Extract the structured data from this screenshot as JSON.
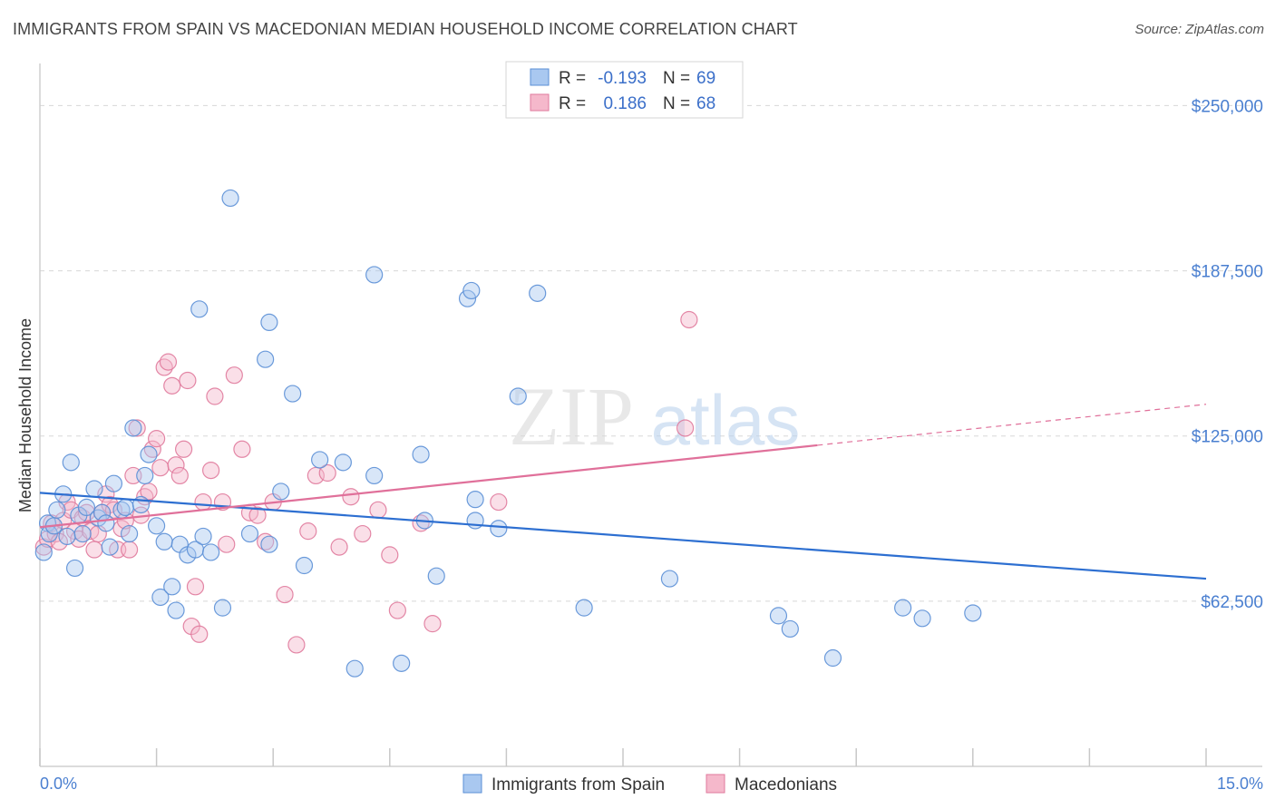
{
  "header": {
    "title": "IMMIGRANTS FROM SPAIN VS MACEDONIAN MEDIAN HOUSEHOLD INCOME CORRELATION CHART",
    "source": "Source: ZipAtlas.com"
  },
  "watermark": {
    "zip": "ZIP",
    "atlas": "atlas"
  },
  "legend": {
    "r_label": "R =",
    "n_label": "N =",
    "series1": {
      "r": "-0.193",
      "n": "69"
    },
    "series2": {
      "r": "0.186",
      "n": "68"
    }
  },
  "bottom_legend": {
    "series1": "Immigrants from Spain",
    "series2": "Macedonians"
  },
  "colors": {
    "blue_fill": "#a9c8f0",
    "blue_stroke": "#5b8fd6",
    "blue_line": "#2d6fd1",
    "pink_fill": "#f5b8cb",
    "pink_stroke": "#e07a9c",
    "pink_line": "#e0709a",
    "tick_text": "#4a7fd0"
  },
  "chart_data": {
    "type": "scatter",
    "title": "IMMIGRANTS FROM SPAIN VS MACEDONIAN MEDIAN HOUSEHOLD INCOME CORRELATION CHART",
    "xlabel": "",
    "ylabel": "Median Household Income",
    "xlim": [
      0,
      15
    ],
    "ylim": [
      0,
      262500
    ],
    "x_tick_labels": [
      "0.0%",
      "15.0%"
    ],
    "y_ticks": [
      62500,
      125000,
      187500,
      250000
    ],
    "y_tick_labels": [
      "$62,500",
      "$125,000",
      "$187,500",
      "$250,000"
    ],
    "series": [
      {
        "name": "Immigrants from Spain",
        "r": -0.193,
        "n": 69,
        "trend": {
          "x": [
            0,
            15
          ],
          "y": [
            103500,
            71000
          ],
          "dashed_from": null
        },
        "points": [
          [
            0.05,
            81000
          ],
          [
            0.1,
            92000
          ],
          [
            0.12,
            88000
          ],
          [
            0.18,
            91000
          ],
          [
            0.22,
            97000
          ],
          [
            0.3,
            103000
          ],
          [
            0.35,
            87000
          ],
          [
            0.4,
            115000
          ],
          [
            0.45,
            75000
          ],
          [
            0.5,
            95000
          ],
          [
            0.55,
            88000
          ],
          [
            0.6,
            98000
          ],
          [
            0.7,
            105000
          ],
          [
            0.75,
            94000
          ],
          [
            0.8,
            96000
          ],
          [
            0.85,
            92000
          ],
          [
            0.9,
            83000
          ],
          [
            0.95,
            107000
          ],
          [
            1.05,
            97000
          ],
          [
            1.1,
            98000
          ],
          [
            1.15,
            88000
          ],
          [
            1.2,
            128000
          ],
          [
            1.3,
            99000
          ],
          [
            1.35,
            110000
          ],
          [
            1.4,
            118000
          ],
          [
            1.5,
            91000
          ],
          [
            1.55,
            64000
          ],
          [
            1.6,
            85000
          ],
          [
            1.7,
            68000
          ],
          [
            1.75,
            59000
          ],
          [
            1.8,
            84000
          ],
          [
            1.9,
            80000
          ],
          [
            2.0,
            82000
          ],
          [
            2.05,
            173000
          ],
          [
            2.1,
            87000
          ],
          [
            2.2,
            81000
          ],
          [
            2.35,
            60000
          ],
          [
            2.45,
            215000
          ],
          [
            2.7,
            88000
          ],
          [
            2.95,
            168000
          ],
          [
            2.9,
            154000
          ],
          [
            2.95,
            84000
          ],
          [
            3.1,
            104000
          ],
          [
            3.25,
            141000
          ],
          [
            3.4,
            76000
          ],
          [
            3.6,
            116000
          ],
          [
            3.9,
            115000
          ],
          [
            4.05,
            37000
          ],
          [
            4.3,
            110000
          ],
          [
            4.3,
            186000
          ],
          [
            4.65,
            39000
          ],
          [
            4.9,
            118000
          ],
          [
            4.95,
            93000
          ],
          [
            5.1,
            72000
          ],
          [
            5.5,
            177000
          ],
          [
            5.55,
            180000
          ],
          [
            5.6,
            101000
          ],
          [
            5.6,
            93000
          ],
          [
            5.9,
            90000
          ],
          [
            6.15,
            140000
          ],
          [
            6.4,
            179000
          ],
          [
            7.0,
            60000
          ],
          [
            8.1,
            71000
          ],
          [
            9.5,
            57000
          ],
          [
            9.65,
            52000
          ],
          [
            10.2,
            41000
          ],
          [
            11.1,
            60000
          ],
          [
            11.35,
            56000
          ],
          [
            12.0,
            58000
          ]
        ]
      },
      {
        "name": "Macedonians",
        "r": 0.186,
        "n": 68,
        "trend": {
          "x": [
            0,
            15
          ],
          "y": [
            90500,
            137000
          ],
          "dashed_from": 10.0
        },
        "points": [
          [
            0.05,
            83000
          ],
          [
            0.1,
            86000
          ],
          [
            0.15,
            92000
          ],
          [
            0.2,
            88000
          ],
          [
            0.25,
            85000
          ],
          [
            0.3,
            93000
          ],
          [
            0.35,
            100000
          ],
          [
            0.4,
            97000
          ],
          [
            0.45,
            89000
          ],
          [
            0.5,
            86000
          ],
          [
            0.55,
            94000
          ],
          [
            0.6,
            96000
          ],
          [
            0.65,
            89000
          ],
          [
            0.7,
            82000
          ],
          [
            0.75,
            88000
          ],
          [
            0.8,
            96000
          ],
          [
            0.85,
            103000
          ],
          [
            0.9,
            99000
          ],
          [
            0.95,
            97000
          ],
          [
            1.0,
            82000
          ],
          [
            1.05,
            90000
          ],
          [
            1.1,
            93000
          ],
          [
            1.15,
            82000
          ],
          [
            1.2,
            110000
          ],
          [
            1.25,
            128000
          ],
          [
            1.3,
            95000
          ],
          [
            1.35,
            102000
          ],
          [
            1.4,
            104000
          ],
          [
            1.45,
            120000
          ],
          [
            1.5,
            124000
          ],
          [
            1.55,
            113000
          ],
          [
            1.6,
            151000
          ],
          [
            1.65,
            153000
          ],
          [
            1.7,
            144000
          ],
          [
            1.75,
            114000
          ],
          [
            1.8,
            110000
          ],
          [
            1.85,
            120000
          ],
          [
            1.9,
            146000
          ],
          [
            1.95,
            53000
          ],
          [
            2.0,
            68000
          ],
          [
            2.05,
            50000
          ],
          [
            2.1,
            100000
          ],
          [
            2.2,
            112000
          ],
          [
            2.25,
            140000
          ],
          [
            2.35,
            100000
          ],
          [
            2.4,
            84000
          ],
          [
            2.5,
            148000
          ],
          [
            2.6,
            120000
          ],
          [
            2.7,
            96000
          ],
          [
            2.8,
            95000
          ],
          [
            2.9,
            85000
          ],
          [
            3.0,
            100000
          ],
          [
            3.15,
            65000
          ],
          [
            3.3,
            46000
          ],
          [
            3.45,
            89000
          ],
          [
            3.55,
            110000
          ],
          [
            3.7,
            111000
          ],
          [
            3.85,
            83000
          ],
          [
            4.0,
            102000
          ],
          [
            4.15,
            88000
          ],
          [
            4.35,
            97000
          ],
          [
            4.5,
            80000
          ],
          [
            4.6,
            59000
          ],
          [
            4.9,
            92000
          ],
          [
            5.05,
            54000
          ],
          [
            5.9,
            100000
          ],
          [
            8.3,
            128000
          ],
          [
            8.35,
            169000
          ]
        ]
      }
    ]
  }
}
